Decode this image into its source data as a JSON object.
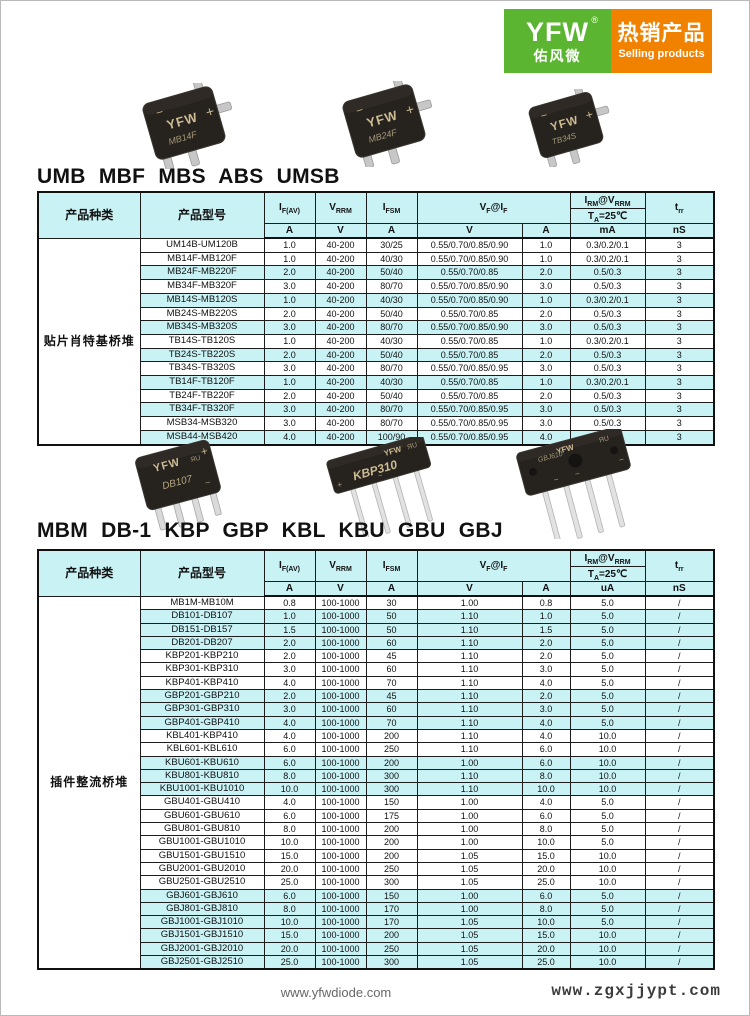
{
  "brand": {
    "logo_text": "YFW",
    "logo_registered": "®",
    "logo_chinese": "佑风微",
    "banner_title": "热销产品",
    "banner_subtitle": "Selling products",
    "logo_bg": "#5cb531",
    "banner_bg": "#f08200"
  },
  "headings": {
    "table1": "UMB MBF MBS ABS UMSB",
    "table2": "MBM DB-1 KBP GBP KBL KBU GBU GBJ"
  },
  "polarity": {
    "minus": "−",
    "plus": "+",
    "ac": "~"
  },
  "cert_mark": "ЯU",
  "product_images": {
    "row1": [
      {
        "label": "MB14F"
      },
      {
        "label": "MB24F"
      },
      {
        "label": "TB34S"
      }
    ],
    "row2": [
      {
        "label": "DB107"
      },
      {
        "label": "KBP310"
      },
      {
        "label": "GBJ610"
      }
    ]
  },
  "table_headers": {
    "category": "产品种类",
    "model": "产品型号",
    "if_av": "I_{F(AV)}",
    "vrrm": "V_{RRM}",
    "ifsm": "I_{FSM}",
    "vf": "V_{F}@I_{F}",
    "irm": "I_{RM}@V_{RRM}",
    "ta": "T_{A}=25℃",
    "trr": "t_{rr}"
  },
  "table1": {
    "category": "贴片肖特基桥堆",
    "units": [
      "A",
      "V",
      "A",
      "V",
      "A",
      "mA",
      "nS"
    ],
    "rows": [
      {
        "shaded": false,
        "cells": [
          "UM14B-UM120B",
          "1.0",
          "40-200",
          "30/25",
          "0.55/0.70/0.85/0.90",
          "1.0",
          "0.3/0.2/0.1",
          "3"
        ]
      },
      {
        "shaded": false,
        "cells": [
          "MB14F-MB120F",
          "1.0",
          "40-200",
          "40/30",
          "0.55/0.70/0.85/0.90",
          "1.0",
          "0.3/0.2/0.1",
          "3"
        ]
      },
      {
        "shaded": true,
        "cells": [
          "MB24F-MB220F",
          "2.0",
          "40-200",
          "50/40",
          "0.55/0.70/0.85",
          "2.0",
          "0.5/0.3",
          "3"
        ]
      },
      {
        "shaded": false,
        "cells": [
          "MB34F-MB320F",
          "3.0",
          "40-200",
          "80/70",
          "0.55/0.70/0.85/0.90",
          "3.0",
          "0.5/0.3",
          "3"
        ]
      },
      {
        "shaded": true,
        "cells": [
          "MB14S-MB120S",
          "1.0",
          "40-200",
          "40/30",
          "0.55/0.70/0.85/0.90",
          "1.0",
          "0.3/0.2/0.1",
          "3"
        ]
      },
      {
        "shaded": false,
        "cells": [
          "MB24S-MB220S",
          "2.0",
          "40-200",
          "50/40",
          "0.55/0.70/0.85",
          "2.0",
          "0.5/0.3",
          "3"
        ]
      },
      {
        "shaded": true,
        "cells": [
          "MB34S-MB320S",
          "3.0",
          "40-200",
          "80/70",
          "0.55/0.70/0.85/0.90",
          "3.0",
          "0.5/0.3",
          "3"
        ]
      },
      {
        "shaded": false,
        "cells": [
          "TB14S-TB120S",
          "1.0",
          "40-200",
          "40/30",
          "0.55/0.70/0.85",
          "1.0",
          "0.3/0.2/0.1",
          "3"
        ]
      },
      {
        "shaded": true,
        "cells": [
          "TB24S-TB220S",
          "2.0",
          "40-200",
          "50/40",
          "0.55/0.70/0.85",
          "2.0",
          "0.5/0.3",
          "3"
        ]
      },
      {
        "shaded": false,
        "cells": [
          "TB34S-TB320S",
          "3.0",
          "40-200",
          "80/70",
          "0.55/0.70/0.85/0.95",
          "3.0",
          "0.5/0.3",
          "3"
        ]
      },
      {
        "shaded": true,
        "cells": [
          "TB14F-TB120F",
          "1.0",
          "40-200",
          "40/30",
          "0.55/0.70/0.85",
          "1.0",
          "0.3/0.2/0.1",
          "3"
        ]
      },
      {
        "shaded": false,
        "cells": [
          "TB24F-TB220F",
          "2.0",
          "40-200",
          "50/40",
          "0.55/0.70/0.85",
          "2.0",
          "0.5/0.3",
          "3"
        ]
      },
      {
        "shaded": true,
        "cells": [
          "TB34F-TB320F",
          "3.0",
          "40-200",
          "80/70",
          "0.55/0.70/0.85/0.95",
          "3.0",
          "0.5/0.3",
          "3"
        ]
      },
      {
        "shaded": false,
        "cells": [
          "MSB34-MSB320",
          "3.0",
          "40-200",
          "80/70",
          "0.55/0.70/0.85/0.95",
          "3.0",
          "0.5/0.3",
          "3"
        ]
      },
      {
        "shaded": true,
        "cells": [
          "MSB44-MSB420",
          "4.0",
          "40-200",
          "100/90",
          "0.55/0.70/0.85/0.95",
          "4.0",
          "0.5/0.3",
          "3"
        ]
      }
    ]
  },
  "table2": {
    "category": "插件整流桥堆",
    "units": [
      "A",
      "V",
      "A",
      "V",
      "A",
      "uA",
      "nS"
    ],
    "rows": [
      {
        "shaded": false,
        "cells": [
          "MB1M-MB10M",
          "0.8",
          "100-1000",
          "30",
          "1.00",
          "0.8",
          "5.0",
          "/"
        ]
      },
      {
        "shaded": true,
        "cells": [
          "DB101-DB107",
          "1.0",
          "100-1000",
          "50",
          "1.10",
          "1.0",
          "5.0",
          "/"
        ]
      },
      {
        "shaded": true,
        "cells": [
          "DB151-DB157",
          "1.5",
          "100-1000",
          "50",
          "1.10",
          "1.5",
          "5.0",
          "/"
        ]
      },
      {
        "shaded": true,
        "cells": [
          "DB201-DB207",
          "2.0",
          "100-1000",
          "60",
          "1.10",
          "2.0",
          "5.0",
          "/"
        ]
      },
      {
        "shaded": false,
        "cells": [
          "KBP201-KBP210",
          "2.0",
          "100-1000",
          "45",
          "1.10",
          "2.0",
          "5.0",
          "/"
        ]
      },
      {
        "shaded": false,
        "cells": [
          "KBP301-KBP310",
          "3.0",
          "100-1000",
          "60",
          "1.10",
          "3.0",
          "5.0",
          "/"
        ]
      },
      {
        "shaded": false,
        "cells": [
          "KBP401-KBP410",
          "4.0",
          "100-1000",
          "70",
          "1.10",
          "4.0",
          "5.0",
          "/"
        ]
      },
      {
        "shaded": true,
        "cells": [
          "GBP201-GBP210",
          "2.0",
          "100-1000",
          "45",
          "1.10",
          "2.0",
          "5.0",
          "/"
        ]
      },
      {
        "shaded": true,
        "cells": [
          "GBP301-GBP310",
          "3.0",
          "100-1000",
          "60",
          "1.10",
          "3.0",
          "5.0",
          "/"
        ]
      },
      {
        "shaded": true,
        "cells": [
          "GBP401-GBP410",
          "4.0",
          "100-1000",
          "70",
          "1.10",
          "4.0",
          "5.0",
          "/"
        ]
      },
      {
        "shaded": false,
        "cells": [
          "KBL401-KBP410",
          "4.0",
          "100-1000",
          "200",
          "1.10",
          "4.0",
          "10.0",
          "/"
        ]
      },
      {
        "shaded": false,
        "cells": [
          "KBL601-KBL610",
          "6.0",
          "100-1000",
          "250",
          "1.10",
          "6.0",
          "10.0",
          "/"
        ]
      },
      {
        "shaded": true,
        "cells": [
          "KBU601-KBU610",
          "6.0",
          "100-1000",
          "200",
          "1.00",
          "6.0",
          "10.0",
          "/"
        ]
      },
      {
        "shaded": true,
        "cells": [
          "KBU801-KBU810",
          "8.0",
          "100-1000",
          "300",
          "1.10",
          "8.0",
          "10.0",
          "/"
        ]
      },
      {
        "shaded": true,
        "cells": [
          "KBU1001-KBU1010",
          "10.0",
          "100-1000",
          "300",
          "1.10",
          "10.0",
          "10.0",
          "/"
        ]
      },
      {
        "shaded": false,
        "cells": [
          "GBU401-GBU410",
          "4.0",
          "100-1000",
          "150",
          "1.00",
          "4.0",
          "5.0",
          "/"
        ]
      },
      {
        "shaded": false,
        "cells": [
          "GBU601-GBU610",
          "6.0",
          "100-1000",
          "175",
          "1.00",
          "6.0",
          "5.0",
          "/"
        ]
      },
      {
        "shaded": false,
        "cells": [
          "GBU801-GBU810",
          "8.0",
          "100-1000",
          "200",
          "1.00",
          "8.0",
          "5.0",
          "/"
        ]
      },
      {
        "shaded": false,
        "cells": [
          "GBU1001-GBU1010",
          "10.0",
          "100-1000",
          "200",
          "1.00",
          "10.0",
          "5.0",
          "/"
        ]
      },
      {
        "shaded": false,
        "cells": [
          "GBU1501-GBU1510",
          "15.0",
          "100-1000",
          "200",
          "1.05",
          "15.0",
          "10.0",
          "/"
        ]
      },
      {
        "shaded": false,
        "cells": [
          "GBU2001-GBU2010",
          "20.0",
          "100-1000",
          "250",
          "1.05",
          "20.0",
          "10.0",
          "/"
        ]
      },
      {
        "shaded": false,
        "cells": [
          "GBU2501-GBU2510",
          "25.0",
          "100-1000",
          "300",
          "1.05",
          "25.0",
          "10.0",
          "/"
        ]
      },
      {
        "shaded": true,
        "cells": [
          "GBJ601-GBJ610",
          "6.0",
          "100-1000",
          "150",
          "1.00",
          "6.0",
          "5.0",
          "/"
        ]
      },
      {
        "shaded": true,
        "cells": [
          "GBJ801-GBJ810",
          "8.0",
          "100-1000",
          "170",
          "1.00",
          "8.0",
          "5.0",
          "/"
        ]
      },
      {
        "shaded": true,
        "cells": [
          "GBJ1001-GBJ1010",
          "10.0",
          "100-1000",
          "170",
          "1.05",
          "10.0",
          "5.0",
          "/"
        ]
      },
      {
        "shaded": true,
        "cells": [
          "GBJ1501-GBJ1510",
          "15.0",
          "100-1000",
          "200",
          "1.05",
          "15.0",
          "10.0",
          "/"
        ]
      },
      {
        "shaded": true,
        "cells": [
          "GBJ2001-GBJ2010",
          "20.0",
          "100-1000",
          "250",
          "1.05",
          "20.0",
          "10.0",
          "/"
        ]
      },
      {
        "shaded": true,
        "cells": [
          "GBJ2501-GBJ2510",
          "25.0",
          "100-1000",
          "300",
          "1.05",
          "25.0",
          "10.0",
          "/"
        ]
      }
    ]
  },
  "footer": {
    "site_left": "www.yfwdiode.com",
    "site_right": "www.zgxjjypt.com"
  },
  "colors": {
    "cell_shade": "#c9f2f5",
    "logo_green": "#5cb531",
    "banner_orange": "#f08200"
  }
}
